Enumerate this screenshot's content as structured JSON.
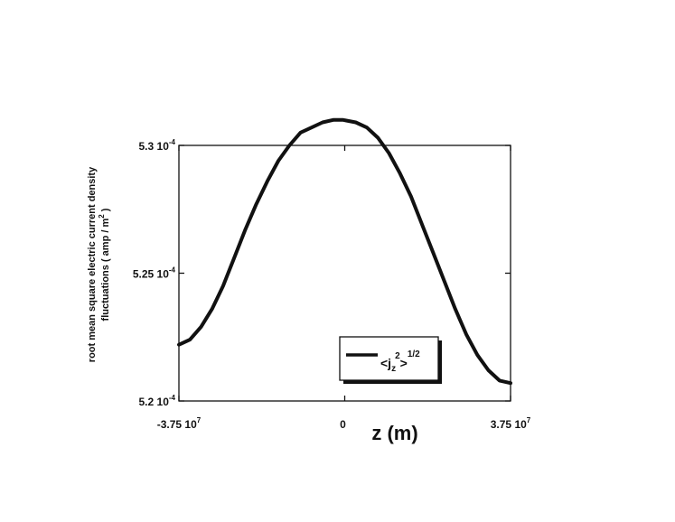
{
  "chart_data": {
    "type": "line",
    "xlabel": "z (m)",
    "ylabel_line1": "root mean square electric current density",
    "ylabel_line2": "fluctuations ( amp / m",
    "ylabel_line2_sup": "2",
    "ylabel_line2_end": " )",
    "xlim": [
      -37500000,
      37500000
    ],
    "ylim": [
      0.00052,
      0.00053
    ],
    "x_ticks": [
      {
        "value": -37500000,
        "mantissa": "-3.75 10",
        "exp": "7"
      },
      {
        "value": 0,
        "mantissa": "0",
        "exp": ""
      },
      {
        "value": 37500000,
        "mantissa": "3.75 10",
        "exp": "7"
      }
    ],
    "y_ticks": [
      {
        "value": 0.00052,
        "mantissa": "5.2 10",
        "exp": "-4"
      },
      {
        "value": 0.000525,
        "mantissa": "5.25 10",
        "exp": "-4"
      },
      {
        "value": 0.00053,
        "mantissa": "5.3 10",
        "exp": "-4"
      }
    ],
    "series": [
      {
        "name": "<j_z^2>^(1/2)",
        "x": [
          -37500000,
          -35000000,
          -32500000,
          -30000000,
          -27500000,
          -25000000,
          -22500000,
          -20000000,
          -17500000,
          -15000000,
          -12500000,
          -10000000,
          -7500000,
          -5000000,
          -2500000,
          -500000,
          2500000,
          5000000,
          7500000,
          10000000,
          12500000,
          15000000,
          17500000,
          20000000,
          22500000,
          25000000,
          27500000,
          30000000,
          32500000,
          35000000,
          37500000
        ],
        "y": [
          0.0005222,
          0.0005224,
          0.0005229,
          0.0005236,
          0.0005245,
          0.0005256,
          0.0005267,
          0.0005277,
          0.0005286,
          0.0005294,
          0.00053,
          0.0005305,
          0.0005307,
          0.0005309,
          0.000531,
          0.000531,
          0.0005309,
          0.0005307,
          0.0005303,
          0.0005297,
          0.0005289,
          0.000528,
          0.0005269,
          0.0005258,
          0.0005247,
          0.0005236,
          0.0005226,
          0.0005218,
          0.0005212,
          0.0005208,
          0.0005207
        ]
      }
    ],
    "legend": {
      "position": "bottom-right",
      "base": "<j",
      "sub": "z",
      "sup2": "2",
      "close": ">",
      "power": "1/2"
    },
    "grid": false
  }
}
